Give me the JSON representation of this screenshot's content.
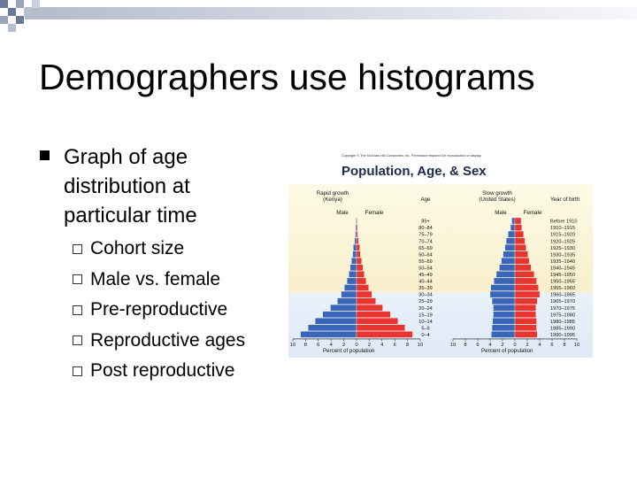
{
  "slide": {
    "title": "Demographers use histograms",
    "bullet": "Graph of age distribution at particular time",
    "sub_bullets": [
      "Cohort size",
      "Male vs. female",
      "Pre-reproductive",
      "Reproductive ages",
      "Post reproductive"
    ]
  },
  "figure": {
    "copyright": "Copyright © The McGraw-Hill Companies, Inc. Permission required for reproduction or display.",
    "title": "Population, Age, & Sex"
  },
  "chart_data": [
    {
      "type": "bar",
      "title": "Rapid growth (Kenya)",
      "subtitle": "",
      "xlabel": "Percent of population",
      "ylabel": "Age",
      "legend": [
        "Male",
        "Female"
      ],
      "age_labels": [
        "85+",
        "80–84",
        "75–79",
        "70–74",
        "65–69",
        "60–64",
        "55–59",
        "50–54",
        "45–49",
        "40–44",
        "35–39",
        "30–34",
        "25–29",
        "20–24",
        "15–19",
        "10–14",
        "5–9",
        "0–4"
      ],
      "x_ticks_male": [
        "10",
        "8",
        "6",
        "4",
        "2",
        "0"
      ],
      "x_ticks_female": [
        "2",
        "4",
        "6",
        "8",
        "10"
      ],
      "xlim": [
        -10,
        10
      ],
      "series": [
        {
          "name": "Male",
          "values": [
            0.1,
            0.15,
            0.2,
            0.3,
            0.5,
            0.6,
            0.8,
            1.0,
            1.2,
            1.5,
            1.9,
            2.4,
            3.0,
            4.1,
            5.3,
            6.5,
            7.6,
            8.8
          ]
        },
        {
          "name": "Female",
          "values": [
            0.1,
            0.15,
            0.2,
            0.3,
            0.5,
            0.6,
            0.8,
            1.0,
            1.2,
            1.5,
            1.9,
            2.4,
            3.0,
            4.1,
            5.3,
            6.5,
            7.6,
            8.8
          ]
        }
      ]
    },
    {
      "type": "bar",
      "title": "Slow growth (United States)",
      "xlabel": "Percent of population",
      "ylabel": "Year of birth",
      "legend": [
        "Male",
        "Female"
      ],
      "year_labels": [
        "Before 1910",
        "1910–1915",
        "1915–1920",
        "1920–1925",
        "1925–1930",
        "1930–1935",
        "1935–1940",
        "1940–1945",
        "1945–1950",
        "1950–1955",
        "1955–1960",
        "1960–1965",
        "1965–1970",
        "1970–1975",
        "1975–1980",
        "1980–1985",
        "1985–1990",
        "1990–1995"
      ],
      "x_ticks_male": [
        "10",
        "8",
        "6",
        "4",
        "2",
        "0"
      ],
      "x_ticks_female": [
        "2",
        "4",
        "6",
        "8",
        "10"
      ],
      "xlim": [
        -10,
        10
      ],
      "series": [
        {
          "name": "Male",
          "values": [
            0.5,
            0.7,
            1.1,
            1.4,
            1.6,
            1.9,
            2.2,
            2.5,
            3.0,
            3.4,
            3.9,
            4.0,
            3.7,
            3.5,
            3.5,
            3.6,
            3.7,
            3.8
          ]
        },
        {
          "name": "Female",
          "values": [
            1.0,
            1.1,
            1.4,
            1.6,
            1.8,
            2.1,
            2.3,
            2.6,
            3.1,
            3.5,
            3.8,
            4.0,
            3.6,
            3.4,
            3.4,
            3.5,
            3.5,
            3.6
          ]
        }
      ]
    }
  ],
  "colors": {
    "male": "#3a66b8",
    "female": "#e8352f",
    "band_top": "#fdfbe6",
    "band_mid": "#f7edc8",
    "band_bottom": "#e9f1fa"
  }
}
